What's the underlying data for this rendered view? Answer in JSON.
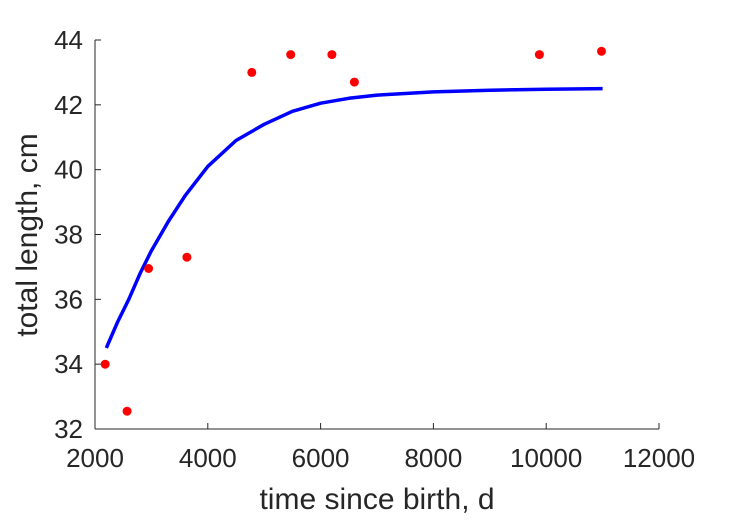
{
  "chart_data": {
    "type": "scatter",
    "xlabel": "time since birth, d",
    "ylabel": "total length, cm",
    "xlim": [
      2000,
      12000
    ],
    "ylim": [
      32,
      44
    ],
    "xticks": [
      2000,
      4000,
      6000,
      8000,
      10000,
      12000
    ],
    "yticks": [
      32,
      34,
      36,
      38,
      40,
      42,
      44
    ],
    "grid": false,
    "box": "left-bottom",
    "series": [
      {
        "kind": "points",
        "color": "#ff0000",
        "x": [
          2180,
          2570,
          2950,
          3630,
          4780,
          5470,
          6200,
          6600,
          9880,
          10980
        ],
        "y": [
          34.0,
          32.55,
          36.95,
          37.3,
          43.0,
          43.55,
          43.55,
          42.7,
          43.55,
          43.65
        ]
      },
      {
        "kind": "line",
        "color": "#0000ff",
        "x": [
          2200,
          2400,
          2600,
          2800,
          3000,
          3300,
          3600,
          4000,
          4500,
          5000,
          5500,
          6000,
          6500,
          7000,
          8000,
          9000,
          10000,
          11000
        ],
        "y": [
          34.5,
          35.3,
          36.0,
          36.8,
          37.5,
          38.4,
          39.2,
          40.1,
          40.9,
          41.4,
          41.8,
          42.05,
          42.2,
          42.3,
          42.4,
          42.45,
          42.48,
          42.5
        ]
      }
    ]
  }
}
